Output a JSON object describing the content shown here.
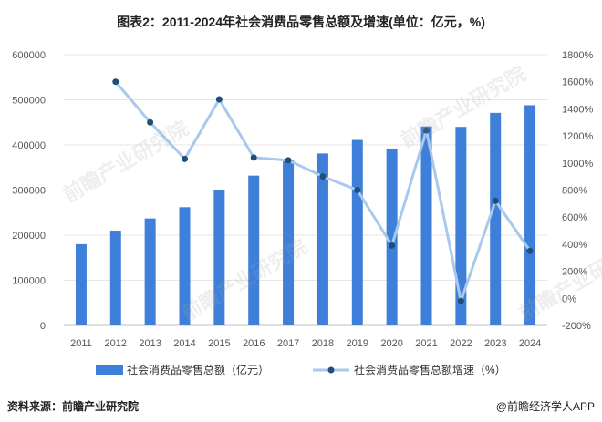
{
  "chart_data": {
    "type": "bar+line",
    "title": "图表2：2011-2024年社会消费品零售总额及增速(单位：亿元，%)",
    "categories": [
      "2011",
      "2012",
      "2013",
      "2014",
      "2015",
      "2016",
      "2017",
      "2018",
      "2019",
      "2020",
      "2021",
      "2022",
      "2023",
      "2024"
    ],
    "series": [
      {
        "name": "社会消费品零售总额（亿元）",
        "type": "bar",
        "axis": "left",
        "color": "#3d7fd9",
        "values": [
          180000,
          210000,
          237000,
          262000,
          301000,
          332000,
          366000,
          381000,
          411000,
          392000,
          441000,
          440000,
          471000,
          488000
        ]
      },
      {
        "name": "社会消费品零售总额增速（%）",
        "type": "line",
        "axis": "right",
        "color": "#a9c9ec",
        "marker_color": "#1f4e79",
        "values": [
          null,
          1600,
          1300,
          1030,
          1470,
          1040,
          1020,
          900,
          800,
          390,
          1240,
          -20,
          720,
          350
        ]
      }
    ],
    "y_left": {
      "min": 0,
      "max": 600000,
      "step": 100000,
      "ticks": [
        "0",
        "100000",
        "200000",
        "300000",
        "400000",
        "500000",
        "600000"
      ]
    },
    "y_right": {
      "min": -200,
      "max": 1800,
      "step": 200,
      "ticks": [
        "-200%",
        "0%",
        "200%",
        "400%",
        "600%",
        "800%",
        "1000%",
        "1200%",
        "1400%",
        "1600%",
        "1800%"
      ]
    },
    "legend_position": "bottom"
  },
  "footer": {
    "source": "资料来源：前瞻产业研究院",
    "brand": "@前瞻经济学人APP"
  },
  "watermark": {
    "text": "前瞻产业研究院"
  }
}
